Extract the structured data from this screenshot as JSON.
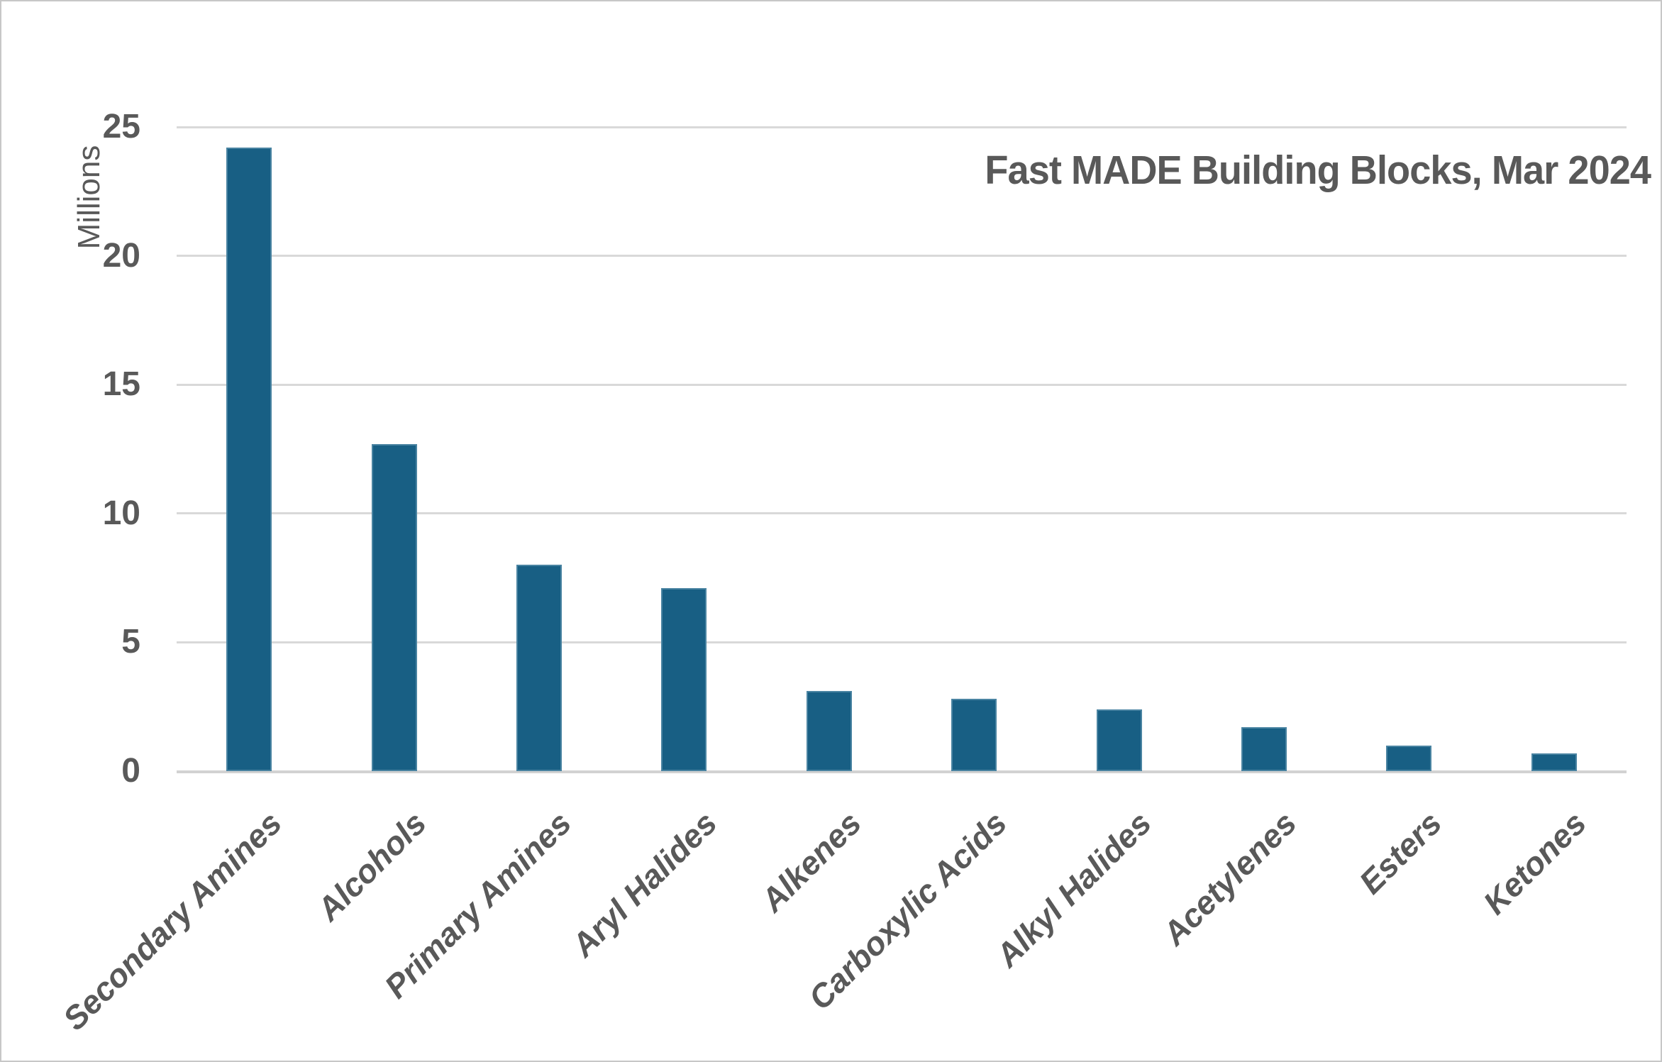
{
  "chart_data": {
    "type": "bar",
    "title": "Fast MADE Building Blocks, Mar 2024",
    "ylabel": "Millions",
    "xlabel": "",
    "categories": [
      "Secondary Amines",
      "Alcohols",
      "Primary Amines",
      "Aryl Halides",
      "Alkenes",
      "Carboxylic Acids",
      "Alkyl Halides",
      "Acetylenes",
      "Esters",
      "Ketones"
    ],
    "values": [
      24.2,
      12.7,
      8.0,
      7.1,
      3.1,
      2.8,
      2.4,
      1.7,
      1.0,
      0.7
    ],
    "ylim": [
      0,
      25
    ],
    "yticks": [
      25,
      20,
      15,
      10,
      5,
      0
    ],
    "grid": "horizontal",
    "legend": "none",
    "colors": {
      "bar": "#185f84",
      "text": "#595959",
      "gridline": "#d9d9d9",
      "axis_line": "#d2d2d2",
      "background": "#ffffff",
      "frame_border": "#c7c7c7"
    }
  }
}
